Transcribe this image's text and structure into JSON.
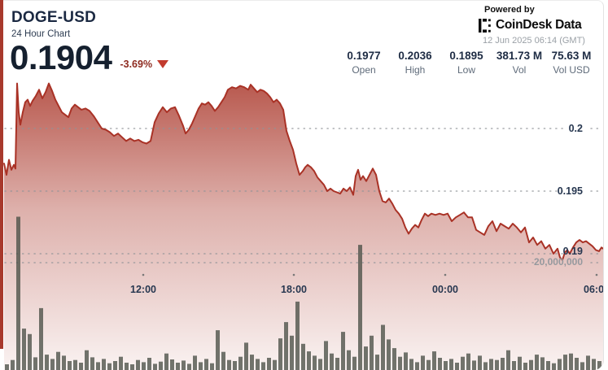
{
  "header": {
    "symbol": "DOGE-USD",
    "subtitle": "24 Hour Chart",
    "price": "0.1904",
    "change": "-3.69%",
    "change_direction": "down",
    "powered_by": "Powered by",
    "brand": "CoinDesk Data",
    "timestamp": "12 Jun 2025 06:14 (GMT)"
  },
  "stats": [
    {
      "value": "0.1977",
      "label": "Open"
    },
    {
      "value": "0.2036",
      "label": "High"
    },
    {
      "value": "0.1895",
      "label": "Low"
    },
    {
      "value": "381.73 M",
      "label": "Vol"
    },
    {
      "value": "75.63 M",
      "label": "Vol USD"
    }
  ],
  "colors": {
    "accent_red": "#a8392c",
    "line_red": "#a93226",
    "area_red": "#a73023",
    "navy_text": "#1e2c44",
    "volume_bar": "#4a4f46",
    "grid_dot": "#8f9398"
  },
  "chart_data": {
    "type": "area+bar",
    "title": "DOGE-USD 24 Hour Chart",
    "ohlc": {
      "open": 0.1977,
      "high": 0.2036,
      "low": 0.1895,
      "close": 0.1904
    },
    "volume": "381.73 M",
    "volume_usd": "75.63 M",
    "y_tick_labels": [
      "0.2",
      "0.195",
      "0.19"
    ],
    "y_tick_values": [
      0.2,
      0.195,
      0.19
    ],
    "volume_tick_label": "20,000,000",
    "volume_tick_value_millions": 20,
    "x_tick_labels": [
      "12:00",
      "18:00",
      "00:00",
      "06:00"
    ],
    "price_series": [
      [
        5,
        0.1972
      ],
      [
        8,
        0.1963
      ],
      [
        11,
        0.1975
      ],
      [
        14,
        0.1967
      ],
      [
        17,
        0.1971
      ],
      [
        19,
        0.1968
      ],
      [
        21,
        0.2036
      ],
      [
        23,
        0.2013
      ],
      [
        25,
        0.2003
      ],
      [
        28,
        0.2013
      ],
      [
        31,
        0.2021
      ],
      [
        34,
        0.2023
      ],
      [
        37,
        0.2018
      ],
      [
        40,
        0.2022
      ],
      [
        44,
        0.2026
      ],
      [
        48,
        0.2031
      ],
      [
        52,
        0.2024
      ],
      [
        56,
        0.2029
      ],
      [
        60,
        0.2036
      ],
      [
        64,
        0.203
      ],
      [
        68,
        0.2023
      ],
      [
        72,
        0.2018
      ],
      [
        76,
        0.2013
      ],
      [
        80,
        0.2011
      ],
      [
        84,
        0.2009
      ],
      [
        88,
        0.2016
      ],
      [
        92,
        0.2019
      ],
      [
        96,
        0.2017
      ],
      [
        100,
        0.2015
      ],
      [
        105,
        0.2016
      ],
      [
        110,
        0.2014
      ],
      [
        115,
        0.201
      ],
      [
        120,
        0.2005
      ],
      [
        125,
        0.2
      ],
      [
        130,
        0.1999
      ],
      [
        135,
        0.1997
      ],
      [
        140,
        0.1994
      ],
      [
        145,
        0.1996
      ],
      [
        150,
        0.1993
      ],
      [
        155,
        0.199
      ],
      [
        160,
        0.1992
      ],
      [
        165,
        0.199
      ],
      [
        170,
        0.1991
      ],
      [
        175,
        0.1989
      ],
      [
        180,
        0.1988
      ],
      [
        185,
        0.199
      ],
      [
        190,
        0.2005
      ],
      [
        195,
        0.2012
      ],
      [
        200,
        0.2017
      ],
      [
        205,
        0.2013
      ],
      [
        210,
        0.2016
      ],
      [
        215,
        0.2017
      ],
      [
        220,
        0.201
      ],
      [
        225,
        0.2002
      ],
      [
        228,
        0.1996
      ],
      [
        232,
        0.1999
      ],
      [
        236,
        0.2004
      ],
      [
        240,
        0.201
      ],
      [
        244,
        0.2016
      ],
      [
        248,
        0.202
      ],
      [
        252,
        0.2019
      ],
      [
        256,
        0.2021
      ],
      [
        260,
        0.2018
      ],
      [
        264,
        0.2014
      ],
      [
        268,
        0.2017
      ],
      [
        272,
        0.2021
      ],
      [
        276,
        0.2025
      ],
      [
        280,
        0.2031
      ],
      [
        285,
        0.2033
      ],
      [
        290,
        0.2032
      ],
      [
        295,
        0.2034
      ],
      [
        300,
        0.2033
      ],
      [
        305,
        0.2031
      ],
      [
        308,
        0.2035
      ],
      [
        312,
        0.2032
      ],
      [
        316,
        0.2029
      ],
      [
        320,
        0.2031
      ],
      [
        324,
        0.203
      ],
      [
        328,
        0.2028
      ],
      [
        332,
        0.2025
      ],
      [
        336,
        0.2021
      ],
      [
        340,
        0.2023
      ],
      [
        344,
        0.202
      ],
      [
        348,
        0.2015
      ],
      [
        352,
        0.1998
      ],
      [
        356,
        0.199
      ],
      [
        360,
        0.1983
      ],
      [
        364,
        0.1972
      ],
      [
        368,
        0.1963
      ],
      [
        372,
        0.1966
      ],
      [
        375,
        0.1969
      ],
      [
        378,
        0.1971
      ],
      [
        382,
        0.1969
      ],
      [
        386,
        0.1966
      ],
      [
        390,
        0.1961
      ],
      [
        394,
        0.1958
      ],
      [
        398,
        0.1955
      ],
      [
        402,
        0.195
      ],
      [
        406,
        0.1952
      ],
      [
        410,
        0.195
      ],
      [
        414,
        0.1949
      ],
      [
        418,
        0.1948
      ],
      [
        422,
        0.1952
      ],
      [
        426,
        0.195
      ],
      [
        430,
        0.1953
      ],
      [
        434,
        0.1947
      ],
      [
        437,
        0.1962
      ],
      [
        440,
        0.1967
      ],
      [
        443,
        0.1959
      ],
      [
        446,
        0.1962
      ],
      [
        450,
        0.1958
      ],
      [
        454,
        0.1963
      ],
      [
        458,
        0.1968
      ],
      [
        462,
        0.1963
      ],
      [
        466,
        0.195
      ],
      [
        470,
        0.1942
      ],
      [
        474,
        0.1941
      ],
      [
        478,
        0.1944
      ],
      [
        482,
        0.194
      ],
      [
        486,
        0.1935
      ],
      [
        490,
        0.1932
      ],
      [
        494,
        0.1928
      ],
      [
        498,
        0.1921
      ],
      [
        502,
        0.1916
      ],
      [
        506,
        0.192
      ],
      [
        510,
        0.1923
      ],
      [
        514,
        0.1921
      ],
      [
        518,
        0.1927
      ],
      [
        522,
        0.1932
      ],
      [
        526,
        0.193
      ],
      [
        530,
        0.1932
      ],
      [
        535,
        0.1931
      ],
      [
        540,
        0.1932
      ],
      [
        545,
        0.1931
      ],
      [
        550,
        0.1932
      ],
      [
        555,
        0.1926
      ],
      [
        560,
        0.1929
      ],
      [
        565,
        0.1931
      ],
      [
        570,
        0.1933
      ],
      [
        575,
        0.1929
      ],
      [
        580,
        0.1929
      ],
      [
        585,
        0.1919
      ],
      [
        590,
        0.1917
      ],
      [
        595,
        0.1915
      ],
      [
        600,
        0.1922
      ],
      [
        605,
        0.1926
      ],
      [
        610,
        0.1918
      ],
      [
        615,
        0.1924
      ],
      [
        620,
        0.1922
      ],
      [
        625,
        0.192
      ],
      [
        630,
        0.1924
      ],
      [
        635,
        0.1921
      ],
      [
        640,
        0.1917
      ],
      [
        645,
        0.1921
      ],
      [
        650,
        0.1909
      ],
      [
        655,
        0.1913
      ],
      [
        660,
        0.1907
      ],
      [
        665,
        0.191
      ],
      [
        670,
        0.1904
      ],
      [
        675,
        0.1907
      ],
      [
        680,
        0.19
      ],
      [
        685,
        0.1904
      ],
      [
        688,
        0.1897
      ],
      [
        691,
        0.1895
      ],
      [
        694,
        0.1901
      ],
      [
        697,
        0.1903
      ],
      [
        700,
        0.19
      ],
      [
        704,
        0.1905
      ],
      [
        708,
        0.1909
      ],
      [
        712,
        0.1911
      ],
      [
        716,
        0.1909
      ],
      [
        720,
        0.191
      ],
      [
        724,
        0.1908
      ],
      [
        728,
        0.1906
      ],
      [
        732,
        0.1903
      ],
      [
        736,
        0.1902
      ],
      [
        739,
        0.1905
      ],
      [
        741,
        0.1904
      ]
    ],
    "volume_series_millions": [
      1.2,
      2.0,
      28.5,
      7.8,
      6.8,
      2.5,
      11.6,
      3.0,
      2.2,
      3.5,
      2.8,
      1.8,
      2.0,
      1.5,
      3.8,
      2.5,
      1.6,
      2.2,
      1.4,
      1.8,
      2.6,
      1.5,
      1.2,
      2.0,
      1.6,
      2.4,
      1.3,
      1.7,
      3.2,
      2.1,
      1.5,
      1.9,
      1.3,
      2.8,
      1.6,
      2.2,
      1.4,
      7.5,
      3.5,
      2.0,
      1.8,
      2.6,
      5.2,
      3.0,
      2.2,
      1.6,
      2.4,
      2.0,
      6.0,
      9.0,
      6.5,
      12.8,
      5.0,
      3.6,
      2.8,
      2.2,
      5.5,
      3.2,
      2.4,
      7.2,
      3.8,
      2.6,
      23.3,
      4.5,
      6.5,
      3.0,
      8.5,
      5.8,
      4.2,
      2.6,
      3.4,
      2.2,
      1.6,
      2.8,
      2.0,
      3.6,
      2.4,
      1.8,
      2.2,
      1.5,
      2.6,
      3.2,
      1.9,
      2.8,
      1.6,
      2.2,
      2.0,
      2.4,
      3.8,
      1.8,
      2.6,
      1.5,
      2.0,
      3.0,
      2.5,
      1.8,
      1.4,
      2.2,
      3.0,
      3.2,
      2.4,
      1.6,
      2.8,
      2.2,
      1.8
    ]
  }
}
